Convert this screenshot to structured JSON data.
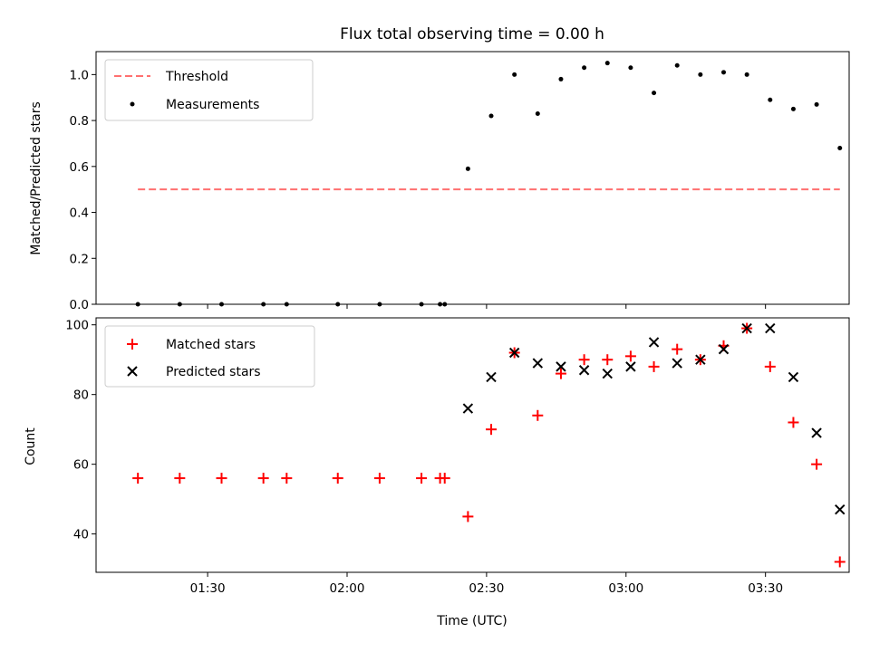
{
  "chart_data": [
    {
      "type": "scatter",
      "title": "Flux total observing time = 0.00 h",
      "xlabel": "",
      "ylabel": "Matched/Predicted stars",
      "xlim": [
        "01:06",
        "03:48"
      ],
      "ylim": [
        0.0,
        1.1
      ],
      "yticks": [
        0.0,
        0.2,
        0.4,
        0.6,
        0.8,
        1.0
      ],
      "ytick_labels": [
        "0.0",
        "0.2",
        "0.4",
        "0.6",
        "0.8",
        "1.0"
      ],
      "legend_position": "upper-left",
      "grid": false,
      "series": [
        {
          "name": "Threshold",
          "kind": "dashed-line",
          "color": "#ff7070",
          "x": [
            "01:15",
            "03:46"
          ],
          "y": [
            0.5,
            0.5
          ]
        },
        {
          "name": "Measurements",
          "kind": "dot",
          "color": "#000000",
          "x": [
            "01:15",
            "01:24",
            "01:33",
            "01:42",
            "01:47",
            "01:58",
            "02:07",
            "02:16",
            "02:20",
            "02:21",
            "02:26",
            "02:31",
            "02:36",
            "02:41",
            "02:46",
            "02:51",
            "02:56",
            "03:01",
            "03:06",
            "03:11",
            "03:16",
            "03:21",
            "03:26",
            "03:31",
            "03:36",
            "03:41",
            "03:46"
          ],
          "y": [
            0.0,
            0.0,
            0.0,
            0.0,
            0.0,
            0.0,
            0.0,
            0.0,
            0.0,
            0.0,
            0.59,
            0.82,
            1.0,
            0.83,
            0.98,
            1.03,
            1.05,
            1.03,
            0.92,
            1.04,
            1.0,
            1.01,
            1.0,
            0.89,
            0.85,
            0.87,
            0.68
          ]
        }
      ]
    },
    {
      "type": "scatter",
      "title": "",
      "xlabel": "Time (UTC)",
      "ylabel": "Count",
      "xlim": [
        "01:06",
        "03:48"
      ],
      "ylim": [
        29,
        102
      ],
      "xticks": [
        "01:30",
        "02:00",
        "02:30",
        "03:00",
        "03:30"
      ],
      "xtick_labels": [
        "01:30",
        "02:00",
        "02:30",
        "03:00",
        "03:30"
      ],
      "yticks": [
        40,
        60,
        80,
        100
      ],
      "ytick_labels": [
        "40",
        "60",
        "80",
        "100"
      ],
      "legend_position": "upper-left",
      "grid": false,
      "series": [
        {
          "name": "Matched stars",
          "kind": "plus",
          "color": "#ff0000",
          "x": [
            "01:15",
            "01:24",
            "01:33",
            "01:42",
            "01:47",
            "01:58",
            "02:07",
            "02:16",
            "02:20",
            "02:21",
            "02:26",
            "02:31",
            "02:36",
            "02:41",
            "02:46",
            "02:51",
            "02:56",
            "03:01",
            "03:06",
            "03:11",
            "03:16",
            "03:21",
            "03:26",
            "03:31",
            "03:36",
            "03:41",
            "03:46"
          ],
          "y": [
            56,
            56,
            56,
            56,
            56,
            56,
            56,
            56,
            56,
            56,
            45,
            70,
            92,
            74,
            86,
            90,
            90,
            91,
            88,
            93,
            90,
            94,
            99,
            88,
            72,
            60,
            32
          ]
        },
        {
          "name": "Predicted stars",
          "kind": "x",
          "color": "#000000",
          "x": [
            "02:26",
            "02:31",
            "02:36",
            "02:41",
            "02:46",
            "02:51",
            "02:56",
            "03:01",
            "03:06",
            "03:11",
            "03:16",
            "03:21",
            "03:26",
            "03:31",
            "03:36",
            "03:41",
            "03:46"
          ],
          "y": [
            76,
            85,
            92,
            89,
            88,
            87,
            86,
            88,
            95,
            89,
            90,
            93,
            99,
            99,
            85,
            69,
            47
          ]
        }
      ]
    }
  ]
}
